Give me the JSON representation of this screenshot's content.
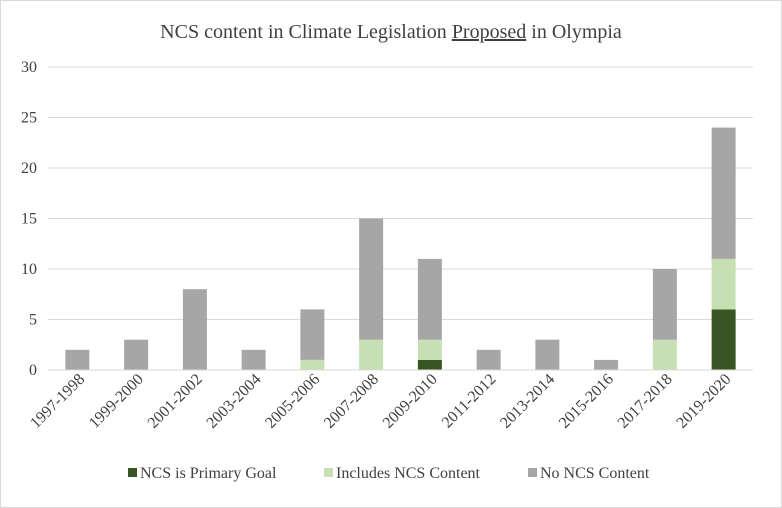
{
  "chart_data": {
    "type": "bar",
    "stacked": true,
    "title": {
      "before": "NCS content in Climate Legislation ",
      "underlined": "Proposed",
      "after": " in Olympia"
    },
    "xlabel": "",
    "ylabel": "",
    "ylim": [
      0,
      30
    ],
    "yticks": [
      "0",
      "5",
      "10",
      "15",
      "20",
      "25",
      "30"
    ],
    "grid": true,
    "legend_position": "bottom",
    "categories": [
      "1997-1998",
      "1999-2000",
      "2001-2002",
      "2003-2004",
      "2005-2006",
      "2007-2008",
      "2009-2010",
      "2011-2012",
      "2013-2014",
      "2015-2016",
      "2017-2018",
      "2019-2020"
    ],
    "series": [
      {
        "name": "NCS is Primary Goal",
        "color": "#375623",
        "values": [
          0,
          0,
          0,
          0,
          0,
          0,
          1,
          0,
          0,
          0,
          0,
          6
        ]
      },
      {
        "name": "Includes NCS Content",
        "color": "#c6e0b4",
        "values": [
          0,
          0,
          0,
          0,
          1,
          3,
          2,
          0,
          0,
          0,
          3,
          5
        ]
      },
      {
        "name": "No NCS Content",
        "color": "#a6a6a6",
        "values": [
          2,
          3,
          8,
          2,
          5,
          12,
          8,
          2,
          3,
          1,
          7,
          13
        ]
      }
    ]
  }
}
